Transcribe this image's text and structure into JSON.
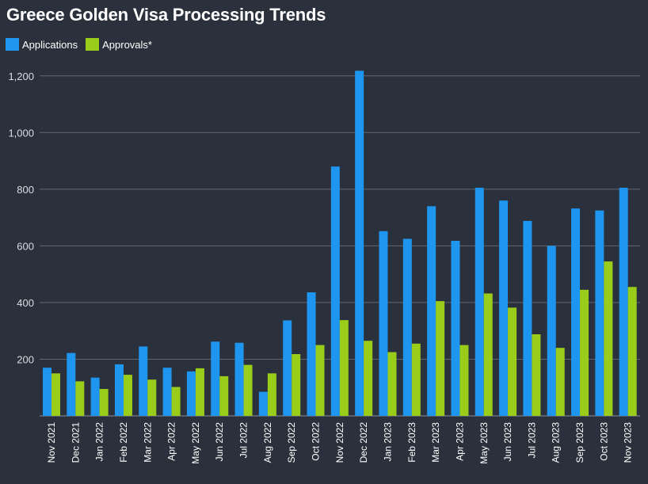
{
  "colors": {
    "background": "#2b313c",
    "applications": "#1e96f0",
    "approvals": "#9acd1a",
    "grid": "#5f6772",
    "axis": "#8a919b"
  },
  "chart_data": {
    "type": "bar",
    "title": "Greece Golden Visa Processing Trends",
    "xlabel": "",
    "ylabel": "",
    "ylim": [
      0,
      1300
    ],
    "yticks": [
      200,
      400,
      600,
      800,
      1000,
      1200
    ],
    "ytick_labels": [
      "200",
      "400",
      "600",
      "800",
      "1,000",
      "1,200"
    ],
    "grid": true,
    "legend_position": "top-left",
    "categories": [
      "Nov 2021",
      "Dec 2021",
      "Jan 2022",
      "Feb 2022",
      "Mar 2022",
      "Apr 2022",
      "May 2022",
      "Jun 2022",
      "Jul 2022",
      "Aug 2022",
      "Sep 2022",
      "Oct 2022",
      "Nov 2022",
      "Dec 2022",
      "Jan 2023",
      "Feb 2023",
      "Mar 2023",
      "Apr 2023",
      "May 2023",
      "Jun 2023",
      "Jul 2023",
      "Aug 2023",
      "Sep 2023",
      "Oct 2023",
      "Nov 2023"
    ],
    "series": [
      {
        "name": "Applications",
        "values": [
          170,
          222,
          135,
          182,
          245,
          170,
          157,
          262,
          258,
          85,
          337,
          436,
          880,
          1218,
          652,
          625,
          740,
          618,
          805,
          760,
          688,
          600,
          732,
          725,
          805
        ]
      },
      {
        "name": "Approvals*",
        "values": [
          150,
          122,
          95,
          145,
          128,
          102,
          168,
          140,
          180,
          150,
          218,
          250,
          338,
          265,
          225,
          255,
          405,
          250,
          432,
          382,
          288,
          240,
          445,
          545,
          455
        ]
      }
    ]
  }
}
